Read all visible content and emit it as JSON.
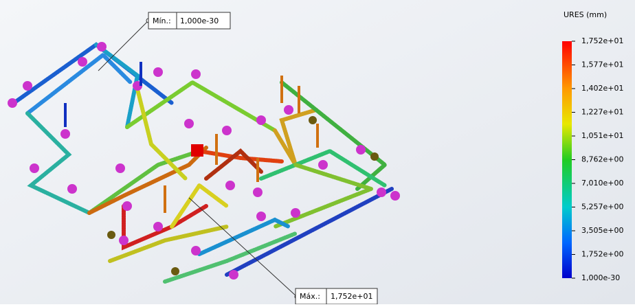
{
  "legend": {
    "title": "URES (mm)",
    "labels": [
      "1,752e+01",
      "1,577e+01",
      "1,402e+01",
      "1,227e+01",
      "1,051e+01",
      "8,762e+00",
      "7,010e+00",
      "5,257e+00",
      "3,505e+00",
      "1,752e+00",
      "1,000e-30"
    ]
  },
  "callouts": {
    "min": {
      "label": "Mín.:",
      "value": "1,000e-30"
    },
    "max": {
      "label": "Máx.:",
      "value": "1,752e+01"
    }
  }
}
